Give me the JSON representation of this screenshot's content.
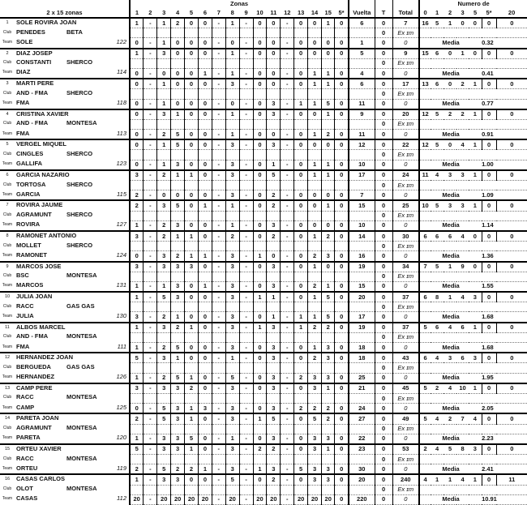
{
  "header": {
    "title": "2 x 15 zonas",
    "zonas_label": "Zonas",
    "zones": [
      "1",
      "2",
      "3",
      "4",
      "5",
      "6",
      "7",
      "8",
      "9",
      "10",
      "11",
      "12",
      "13",
      "14",
      "15"
    ],
    "star_label": "5*",
    "vuelta_label": "Vuelta",
    "t_label": "T",
    "total_label": "Total",
    "numero_label": "Numero de",
    "numero_cols": [
      "0",
      "1",
      "2",
      "3",
      "5",
      "5*",
      "20"
    ]
  },
  "labels": {
    "club": "Club",
    "team": "Team",
    "ex": "Ex ɪm",
    "media": "Media",
    "zero_total": "0",
    "t_value": "0"
  },
  "riders": [
    {
      "pos": "1",
      "name": "SOLE ROVIRA JOAN",
      "club": "PENEDES",
      "brand": "BETA",
      "team": "SOLE",
      "dorsal": "122",
      "lap1": [
        "1",
        "-",
        "1",
        "2",
        "0",
        "0",
        "-",
        "1",
        "-",
        "0",
        "0",
        "-",
        "0",
        "0",
        "1"
      ],
      "star1": "0",
      "v1": "6",
      "total": "7",
      "counts": [
        "16",
        "5",
        "1",
        "0",
        "0",
        "0",
        "0"
      ],
      "lap2": [
        "0",
        "-",
        "1",
        "0",
        "0",
        "0",
        "-",
        "0",
        "-",
        "0",
        "0",
        "-",
        "0",
        "0",
        "0"
      ],
      "star2": "0",
      "v2": "1",
      "media": "0.32"
    },
    {
      "pos": "2",
      "name": "DIAZ JOSEP",
      "club": "CONSTANTI",
      "brand": "SHERCO",
      "team": "DIAZ",
      "dorsal": "114",
      "lap1": [
        "1",
        "-",
        "3",
        "0",
        "0",
        "0",
        "-",
        "1",
        "-",
        "0",
        "0",
        "-",
        "0",
        "0",
        "0"
      ],
      "star1": "0",
      "v1": "5",
      "total": "9",
      "counts": [
        "15",
        "6",
        "0",
        "1",
        "0",
        "0",
        "0"
      ],
      "lap2": [
        "0",
        "-",
        "0",
        "0",
        "0",
        "1",
        "-",
        "1",
        "-",
        "0",
        "0",
        "-",
        "0",
        "1",
        "1"
      ],
      "star2": "0",
      "v2": "4",
      "media": "0.41"
    },
    {
      "pos": "3",
      "name": "MARTI PERE",
      "club": "AND - FMA",
      "brand": "SHERCO",
      "team": "FMA",
      "dorsal": "118",
      "lap1": [
        "0",
        "-",
        "1",
        "0",
        "0",
        "0",
        "-",
        "3",
        "-",
        "0",
        "0",
        "-",
        "0",
        "1",
        "1"
      ],
      "star1": "0",
      "v1": "6",
      "total": "17",
      "counts": [
        "13",
        "6",
        "0",
        "2",
        "1",
        "0",
        "0"
      ],
      "lap2": [
        "0",
        "-",
        "1",
        "0",
        "0",
        "0",
        "-",
        "0",
        "-",
        "0",
        "3",
        "-",
        "1",
        "1",
        "5"
      ],
      "star2": "0",
      "v2": "11",
      "media": "0.77"
    },
    {
      "pos": "4",
      "name": "CRISTINA XAVIER",
      "club": "AND - FMA",
      "brand": "MONTESA",
      "team": "FMA",
      "dorsal": "113",
      "lap1": [
        "0",
        "-",
        "3",
        "1",
        "0",
        "0",
        "-",
        "1",
        "-",
        "0",
        "3",
        "-",
        "0",
        "0",
        "1"
      ],
      "star1": "0",
      "v1": "9",
      "total": "20",
      "counts": [
        "12",
        "5",
        "2",
        "2",
        "1",
        "0",
        "0"
      ],
      "lap2": [
        "0",
        "-",
        "2",
        "5",
        "0",
        "0",
        "-",
        "1",
        "-",
        "0",
        "0",
        "-",
        "0",
        "1",
        "2"
      ],
      "star2": "0",
      "v2": "11",
      "media": "0.91"
    },
    {
      "pos": "5",
      "name": "VERGEL MIQUEL",
      "club": "CINGLES",
      "brand": "SHERCO",
      "team": "GALLIFA",
      "dorsal": "123",
      "lap1": [
        "0",
        "-",
        "1",
        "5",
        "0",
        "0",
        "-",
        "3",
        "-",
        "0",
        "3",
        "-",
        "0",
        "0",
        "0"
      ],
      "star1": "0",
      "v1": "12",
      "total": "22",
      "counts": [
        "12",
        "5",
        "0",
        "4",
        "1",
        "0",
        "0"
      ],
      "lap2": [
        "0",
        "-",
        "1",
        "3",
        "0",
        "0",
        "-",
        "3",
        "-",
        "0",
        "1",
        "-",
        "0",
        "1",
        "1"
      ],
      "star2": "0",
      "v2": "10",
      "media": "1.00"
    },
    {
      "pos": "6",
      "name": "GARCIA NAZARIO",
      "club": "TORTOSA",
      "brand": "SHERCO",
      "team": "GARCIA",
      "dorsal": "115",
      "lap1": [
        "3",
        "-",
        "2",
        "1",
        "1",
        "0",
        "-",
        "3",
        "-",
        "0",
        "5",
        "-",
        "0",
        "1",
        "1"
      ],
      "star1": "0",
      "v1": "17",
      "total": "24",
      "counts": [
        "11",
        "4",
        "3",
        "3",
        "1",
        "0",
        "0"
      ],
      "lap2": [
        "2",
        "-",
        "0",
        "0",
        "0",
        "0",
        "-",
        "3",
        "-",
        "0",
        "2",
        "-",
        "0",
        "0",
        "0"
      ],
      "star2": "0",
      "v2": "7",
      "media": "1.09"
    },
    {
      "pos": "7",
      "name": "ROVIRA JAUME",
      "club": "AGRAMUNT",
      "brand": "SHERCO",
      "team": "ROVIRA",
      "dorsal": "127",
      "lap1": [
        "2",
        "-",
        "3",
        "5",
        "0",
        "1",
        "-",
        "1",
        "-",
        "0",
        "2",
        "-",
        "0",
        "0",
        "1"
      ],
      "star1": "0",
      "v1": "15",
      "total": "25",
      "counts": [
        "10",
        "5",
        "3",
        "3",
        "1",
        "0",
        "0"
      ],
      "lap2": [
        "1",
        "-",
        "2",
        "3",
        "0",
        "0",
        "-",
        "1",
        "-",
        "0",
        "3",
        "-",
        "0",
        "0",
        "0"
      ],
      "star2": "0",
      "v2": "10",
      "media": "1.14"
    },
    {
      "pos": "8",
      "name": "RAMONET ANTONIO",
      "club": "MOLLET",
      "brand": "SHERCO",
      "team": "RAMONET",
      "dorsal": "124",
      "lap1": [
        "3",
        "-",
        "2",
        "1",
        "1",
        "0",
        "-",
        "2",
        "-",
        "0",
        "2",
        "-",
        "0",
        "1",
        "2"
      ],
      "star1": "0",
      "v1": "14",
      "total": "30",
      "counts": [
        "6",
        "6",
        "6",
        "4",
        "0",
        "0",
        "0"
      ],
      "lap2": [
        "0",
        "-",
        "3",
        "2",
        "1",
        "1",
        "-",
        "3",
        "-",
        "1",
        "0",
        "-",
        "0",
        "2",
        "3"
      ],
      "star2": "0",
      "v2": "16",
      "media": "1.36"
    },
    {
      "pos": "9",
      "name": "MARCOS JOSE",
      "club": "BSC",
      "brand": "MONTESA",
      "team": "MARCOS",
      "dorsal": "131",
      "lap1": [
        "3",
        "-",
        "3",
        "3",
        "3",
        "0",
        "-",
        "3",
        "-",
        "0",
        "3",
        "-",
        "0",
        "1",
        "0"
      ],
      "star1": "0",
      "v1": "19",
      "total": "34",
      "counts": [
        "7",
        "5",
        "1",
        "9",
        "0",
        "0",
        "0"
      ],
      "lap2": [
        "1",
        "-",
        "1",
        "3",
        "0",
        "1",
        "-",
        "3",
        "-",
        "0",
        "3",
        "-",
        "0",
        "2",
        "1"
      ],
      "star2": "0",
      "v2": "15",
      "media": "1.55"
    },
    {
      "pos": "10",
      "name": "JULIA JOAN",
      "club": "RACC",
      "brand": "GAS GAS",
      "team": "JULIA",
      "dorsal": "130",
      "lap1": [
        "1",
        "-",
        "5",
        "3",
        "0",
        "0",
        "-",
        "3",
        "-",
        "1",
        "1",
        "-",
        "0",
        "1",
        "5"
      ],
      "star1": "0",
      "v1": "20",
      "total": "37",
      "counts": [
        "6",
        "8",
        "1",
        "4",
        "3",
        "0",
        "0"
      ],
      "lap2": [
        "3",
        "-",
        "2",
        "1",
        "0",
        "0",
        "-",
        "3",
        "-",
        "0",
        "1",
        "-",
        "1",
        "1",
        "5"
      ],
      "star2": "0",
      "v2": "17",
      "media": "1.68"
    },
    {
      "pos": "11",
      "name": "ALBOS MARCEL",
      "club": "AND - FMA",
      "brand": "MONTESA",
      "team": "FMA",
      "dorsal": "111",
      "lap1": [
        "1",
        "-",
        "3",
        "2",
        "1",
        "0",
        "-",
        "3",
        "-",
        "1",
        "3",
        "-",
        "1",
        "2",
        "2"
      ],
      "star1": "0",
      "v1": "19",
      "total": "37",
      "counts": [
        "5",
        "6",
        "4",
        "6",
        "1",
        "0",
        "0"
      ],
      "lap2": [
        "1",
        "-",
        "2",
        "5",
        "0",
        "0",
        "-",
        "3",
        "-",
        "0",
        "3",
        "-",
        "0",
        "1",
        "3"
      ],
      "star2": "0",
      "v2": "18",
      "media": "1.68"
    },
    {
      "pos": "12",
      "name": "HERNANDEZ JOAN",
      "club": "BERGUEDA",
      "brand": "GAS GAS",
      "team": "HERNANDEZ",
      "dorsal": "126",
      "lap1": [
        "5",
        "-",
        "3",
        "1",
        "0",
        "0",
        "-",
        "1",
        "-",
        "0",
        "3",
        "-",
        "0",
        "2",
        "3"
      ],
      "star1": "0",
      "v1": "18",
      "total": "43",
      "counts": [
        "6",
        "4",
        "3",
        "6",
        "3",
        "0",
        "0"
      ],
      "lap2": [
        "1",
        "-",
        "2",
        "5",
        "1",
        "0",
        "-",
        "5",
        "-",
        "0",
        "3",
        "-",
        "2",
        "3",
        "3"
      ],
      "star2": "0",
      "v2": "25",
      "media": "1.95"
    },
    {
      "pos": "13",
      "name": "CAMP PERE",
      "club": "RACC",
      "brand": "MONTESA",
      "team": "CAMP",
      "dorsal": "125",
      "lap1": [
        "3",
        "-",
        "3",
        "3",
        "2",
        "0",
        "-",
        "3",
        "-",
        "0",
        "3",
        "-",
        "0",
        "3",
        "1"
      ],
      "star1": "0",
      "v1": "21",
      "total": "45",
      "counts": [
        "5",
        "2",
        "4",
        "10",
        "1",
        "0",
        "0"
      ],
      "lap2": [
        "0",
        "-",
        "5",
        "3",
        "1",
        "3",
        "-",
        "3",
        "-",
        "0",
        "3",
        "-",
        "2",
        "2",
        "2"
      ],
      "star2": "0",
      "v2": "24",
      "media": "2.05"
    },
    {
      "pos": "14",
      "name": "PARETA JOAN",
      "club": "AGRAMUNT",
      "brand": "MONTESA",
      "team": "PARETA",
      "dorsal": "120",
      "lap1": [
        "2",
        "-",
        "5",
        "3",
        "1",
        "0",
        "-",
        "3",
        "-",
        "1",
        "5",
        "-",
        "0",
        "5",
        "2"
      ],
      "star1": "0",
      "v1": "27",
      "total": "49",
      "counts": [
        "5",
        "4",
        "2",
        "7",
        "4",
        "0",
        "0"
      ],
      "lap2": [
        "1",
        "-",
        "3",
        "3",
        "5",
        "0",
        "-",
        "1",
        "-",
        "0",
        "3",
        "-",
        "0",
        "3",
        "3"
      ],
      "star2": "0",
      "v2": "22",
      "media": "2.23"
    },
    {
      "pos": "15",
      "name": "ORTEU XAVIER",
      "club": "RACC",
      "brand": "MONTESA",
      "team": "ORTEU",
      "dorsal": "119",
      "lap1": [
        "5",
        "-",
        "3",
        "3",
        "1",
        "0",
        "-",
        "3",
        "-",
        "2",
        "2",
        "-",
        "0",
        "3",
        "1"
      ],
      "star1": "0",
      "v1": "23",
      "total": "53",
      "counts": [
        "2",
        "4",
        "5",
        "8",
        "3",
        "0",
        "0"
      ],
      "lap2": [
        "2",
        "-",
        "5",
        "2",
        "2",
        "1",
        "-",
        "3",
        "-",
        "1",
        "3",
        "-",
        "5",
        "3",
        "3"
      ],
      "star2": "0",
      "v2": "30",
      "media": "2.41"
    },
    {
      "pos": "16",
      "name": "CASAS CARLOS",
      "club": "OLOT",
      "brand": "MONTESA",
      "team": "CASAS",
      "dorsal": "112",
      "lap1": [
        "1",
        "-",
        "3",
        "3",
        "0",
        "0",
        "-",
        "5",
        "-",
        "0",
        "2",
        "-",
        "0",
        "3",
        "3"
      ],
      "star1": "0",
      "v1": "20",
      "total": "240",
      "counts": [
        "4",
        "1",
        "1",
        "4",
        "1",
        "0",
        "11"
      ],
      "lap2": [
        "20",
        "-",
        "20",
        "20",
        "20",
        "20",
        "-",
        "20",
        "-",
        "20",
        "20",
        "-",
        "20",
        "20",
        "20"
      ],
      "star2": "0",
      "v2": "220",
      "media": "10.91"
    }
  ]
}
